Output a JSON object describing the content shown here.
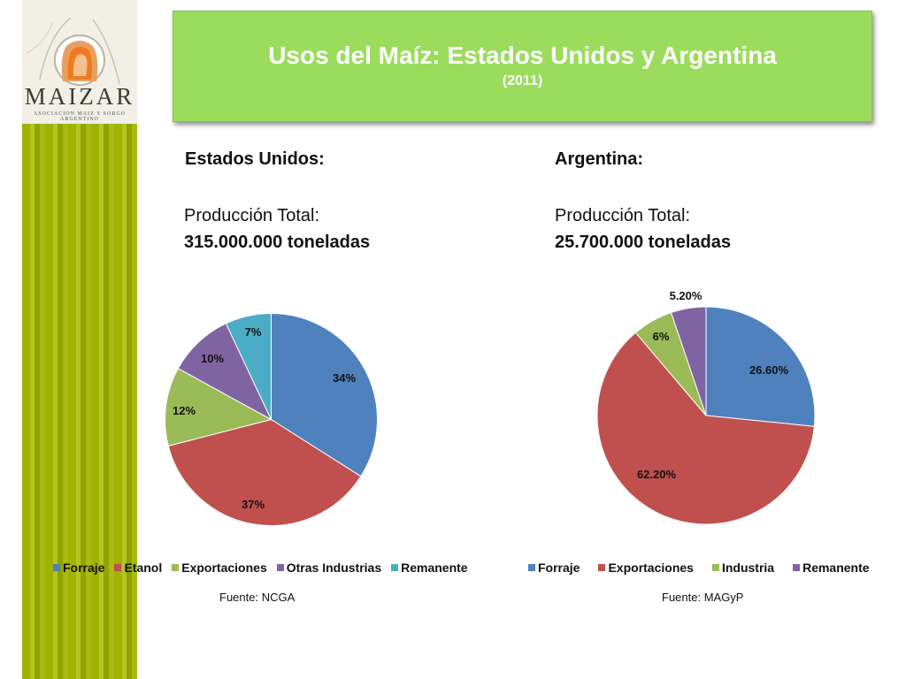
{
  "logo": {
    "name": "MAIZAR",
    "subtitle": "ASOCIACION MAIZ Y SORGO ARGENTINO"
  },
  "title": {
    "main": "Usos del Maíz: Estados Unidos y Argentina",
    "year": "(2011)"
  },
  "colors": {
    "banner": "#9bdc5c",
    "blue": "#4f81bd",
    "red": "#c0504d",
    "green": "#9bbb59",
    "purple": "#8064a2",
    "teal": "#4bacc6"
  },
  "panels": [
    {
      "country": "Estados Unidos:",
      "production_label": "Producción Total:",
      "production_value": "315.000.000 toneladas",
      "source": "Fuente: NCGA"
    },
    {
      "country": "Argentina:",
      "production_label": "Producción Total:",
      "production_value": "25.700.000 toneladas",
      "source": "Fuente: MAGyP"
    }
  ],
  "chart_data": [
    {
      "type": "pie",
      "title": "",
      "legend_position": "bottom",
      "categories": [
        "Forraje",
        "Etanol",
        "Exportaciones",
        "Otras Industrias",
        "Remanente"
      ],
      "values": [
        34,
        37,
        12,
        10,
        7
      ],
      "labels": [
        "34%",
        "37%",
        "12%",
        "10%",
        "7%"
      ],
      "colors": [
        "#4f81bd",
        "#c0504d",
        "#9bbb59",
        "#8064a2",
        "#4bacc6"
      ]
    },
    {
      "type": "pie",
      "title": "",
      "legend_position": "bottom",
      "categories": [
        "Forraje",
        "Exportaciones",
        "Industria",
        "Remanente"
      ],
      "values": [
        26.6,
        62.2,
        6,
        5.2
      ],
      "labels": [
        "26.60%",
        "62.20%",
        "6%",
        "5.20%"
      ],
      "colors": [
        "#4f81bd",
        "#c0504d",
        "#9bbb59",
        "#8064a2"
      ]
    }
  ]
}
